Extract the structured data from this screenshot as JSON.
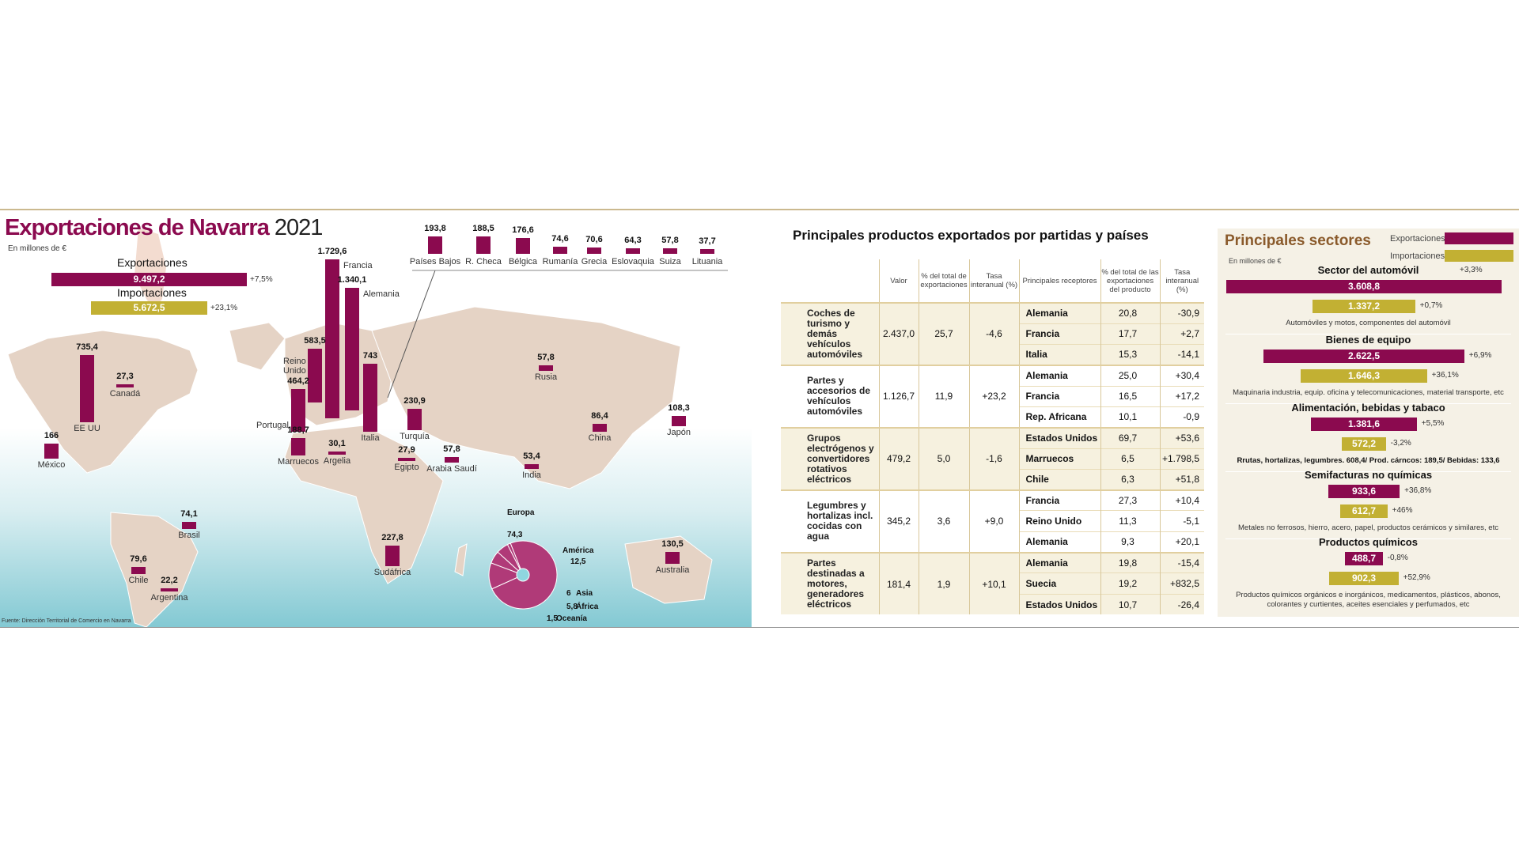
{
  "map": {
    "title": "Exportaciones de Navarra",
    "year": "2021",
    "unit": "En millones de €",
    "exports_label": "Exportaciones",
    "exports_value": "9.497,2",
    "exports_change": "+7,5%",
    "imports_label": "Importaciones",
    "imports_value": "5.672,5",
    "imports_change": "+23,1%",
    "source": "Fuente: Dirección Territorial de Comercio en Navarra",
    "colors": {
      "exports": "#8b0a4f",
      "imports": "#c2b033",
      "land": "#e5d3c5"
    }
  },
  "chart_data": [
    {
      "type": "bar",
      "title": "Exportaciones de Navarra 2021",
      "unit": "En millones de €",
      "categories": [
        "Francia",
        "Alemania",
        "Italia",
        "EE UU",
        "Reino Unido",
        "Portugal",
        "Turquía",
        "Sudáfrica",
        "Marruecos",
        "México",
        "Australia",
        "Japón",
        "China",
        "Chile",
        "Brasil",
        "Rusia",
        "Arabia Saudí",
        "India",
        "Argelia",
        "Egipto",
        "Canadá",
        "Argentina"
      ],
      "values": [
        1729.6,
        1340.1,
        743,
        735.4,
        583.5,
        464.2,
        230.9,
        227.8,
        188.7,
        166,
        130.5,
        108.3,
        86.4,
        79.6,
        74.1,
        57.8,
        57.8,
        53.4,
        30.1,
        27.9,
        27.3,
        22.2
      ],
      "labels": [
        "1.729,6",
        "1.340,1",
        "743",
        "735,4",
        "583,5",
        "464,2",
        "230,9",
        "227,8",
        "188,7",
        "166",
        "130,5",
        "108,3",
        "86,4",
        "79,6",
        "74,1",
        "57,8",
        "57,8",
        "53,4",
        "30,1",
        "27,9",
        "27,3",
        "22,2"
      ]
    },
    {
      "type": "bar",
      "categories": [
        "Países Bajos",
        "R. Checa",
        "Bélgica",
        "Rumanía",
        "Grecia",
        "Eslovaquia",
        "Suiza",
        "Lituania"
      ],
      "values": [
        193.8,
        188.5,
        176.6,
        74.6,
        70.6,
        64.3,
        57.8,
        37.7
      ],
      "labels": [
        "193,8",
        "188,5",
        "176,6",
        "74,6",
        "70,6",
        "64,3",
        "57,8",
        "37,7"
      ]
    },
    {
      "type": "pie",
      "categories": [
        "Europa",
        "América",
        "Asia",
        "África",
        "Oceanía"
      ],
      "values": [
        74.3,
        12.5,
        6,
        5.8,
        1.5
      ],
      "labels": [
        "74,3",
        "12,5",
        "6",
        "5,8",
        "1,5"
      ]
    },
    {
      "type": "bar",
      "title": "Principales sectores",
      "unit": "En millones de €",
      "legend": [
        "Exportaciones",
        "Importaciones"
      ],
      "categories": [
        "Sector del automóvil",
        "Bienes de equipo",
        "Alimentación, bebidas y tabaco",
        "Semifacturas no químicas",
        "Productos químicos"
      ],
      "series": [
        {
          "name": "Exportaciones",
          "values": [
            3608.8,
            2622.5,
            1381.6,
            933.6,
            488.7
          ],
          "labels": [
            "3.608,8",
            "2.622,5",
            "1.381,6",
            "933,6",
            "488,7"
          ],
          "changes": [
            "+3,3%",
            "+6,9%",
            "+5,5%",
            "+36,8%",
            "-0,8%"
          ]
        },
        {
          "name": "Importaciones",
          "values": [
            1337.2,
            1646.3,
            572.2,
            612.7,
            902.3
          ],
          "labels": [
            "1.337,2",
            "1.646,3",
            "572,2",
            "612,7",
            "902,3"
          ],
          "changes": [
            "+0,7%",
            "+36,1%",
            "-3,2%",
            "+46%",
            "+52,9%"
          ]
        }
      ],
      "descriptions": [
        "Automóviles y motos, componentes del automóvil",
        "Maquinaria industria, equip. oficina y telecomunicaciones, material transporte, etc",
        "Rrutas, hortalizas, legumbres. 608,4/ Prod. cárncos:  189,5/ Bebidas: 133,6",
        "Metales no ferrosos, hierro, acero, papel, productos cerámicos y similares, etc",
        "Productos químicos orgánicos e inorgánicos, medicamentos, plásticos, abonos, colorantes y curtientes, aceites esenciales y perfumados, etc"
      ]
    }
  ],
  "table": {
    "title": "Principales productos exportados por partidas y países",
    "headers": [
      "",
      "Valor",
      "% del total de exportaciones",
      "Tasa interanual (%)",
      "Principales receptores",
      "% del total de las exportaciones del producto",
      "Tasa interanual (%)"
    ],
    "groups": [
      {
        "product": "Coches de turismo y demás vehículos automóviles",
        "valor": "2.437,0",
        "pct": "25,7",
        "tasa": "-4,6",
        "rows": [
          [
            "Alemania",
            "20,8",
            "-30,9"
          ],
          [
            "Francia",
            "17,7",
            "+2,7"
          ],
          [
            "Italia",
            "15,3",
            "-14,1"
          ]
        ]
      },
      {
        "product": "Partes y accesorios de vehículos automóviles",
        "valor": "1.126,7",
        "pct": "11,9",
        "tasa": "+23,2",
        "rows": [
          [
            "Alemania",
            "25,0",
            "+30,4"
          ],
          [
            "Francia",
            "16,5",
            "+17,2"
          ],
          [
            "Rep. Africana",
            "10,1",
            "-0,9"
          ]
        ]
      },
      {
        "product": "Grupos electrógenos y convertidores rotativos eléctricos",
        "valor": "479,2",
        "pct": "5,0",
        "tasa": "-1,6",
        "rows": [
          [
            "Estados Unidos",
            "69,7",
            "+53,6"
          ],
          [
            "Marruecos",
            "6,5",
            "+1.798,5"
          ],
          [
            "Chile",
            "6,3",
            "+51,8"
          ]
        ]
      },
      {
        "product": "Legumbres y hortalizas incl. cocidas con agua",
        "valor": "345,2",
        "pct": "3,6",
        "tasa": "+9,0",
        "rows": [
          [
            "Francia",
            "27,3",
            "+10,4"
          ],
          [
            "Reino Unido",
            "11,3",
            "-5,1"
          ],
          [
            "Alemania",
            "9,3",
            "+20,1"
          ]
        ]
      },
      {
        "product": "Partes destinadas a motores, generadores eléctricos",
        "valor": "181,4",
        "pct": "1,9",
        "tasa": "+10,1",
        "rows": [
          [
            "Alemania",
            "19,8",
            "-15,4"
          ],
          [
            "Suecia",
            "19,2",
            "+832,5"
          ],
          [
            "Estados Unidos",
            "10,7",
            "-26,4"
          ]
        ]
      }
    ]
  }
}
